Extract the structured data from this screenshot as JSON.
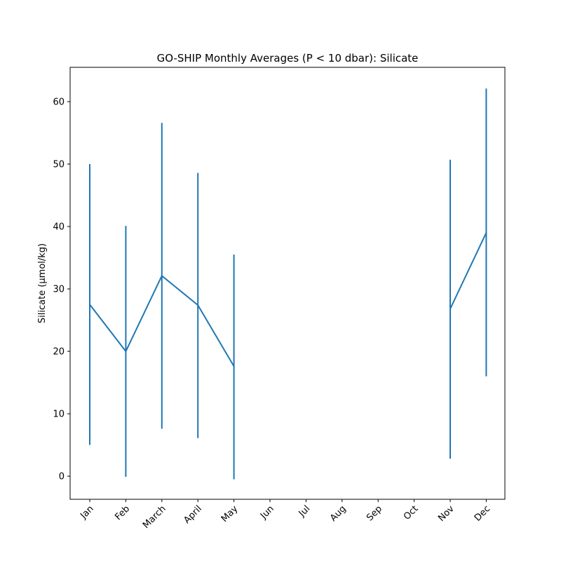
{
  "chart_data": {
    "type": "line",
    "title": "GO-SHIP Monthly Averages (P < 10 dbar): Silicate",
    "xlabel": "",
    "ylabel": "Silicate (µmol/kg)",
    "categories": [
      "Jan",
      "Feb",
      "March",
      "April",
      "May",
      "Jun",
      "Jul",
      "Aug",
      "Sep",
      "Oct",
      "Nov",
      "Dec"
    ],
    "ylim": [
      -3.7,
      65.5
    ],
    "yticks": [
      0,
      10,
      20,
      30,
      40,
      50,
      60
    ],
    "series": [
      {
        "values": [
          27.5,
          20.0,
          32.1,
          27.4,
          17.6,
          null,
          null,
          null,
          null,
          null,
          26.8,
          39.0
        ],
        "err_low": [
          5.0,
          -0.1,
          7.6,
          6.1,
          -0.5,
          null,
          null,
          null,
          null,
          null,
          2.8,
          16.0
        ],
        "err_high": [
          50.0,
          40.1,
          56.6,
          48.6,
          35.5,
          null,
          null,
          null,
          null,
          null,
          50.7,
          62.1
        ],
        "color": "#1f77b4"
      }
    ],
    "grid": false,
    "legend": "none"
  }
}
